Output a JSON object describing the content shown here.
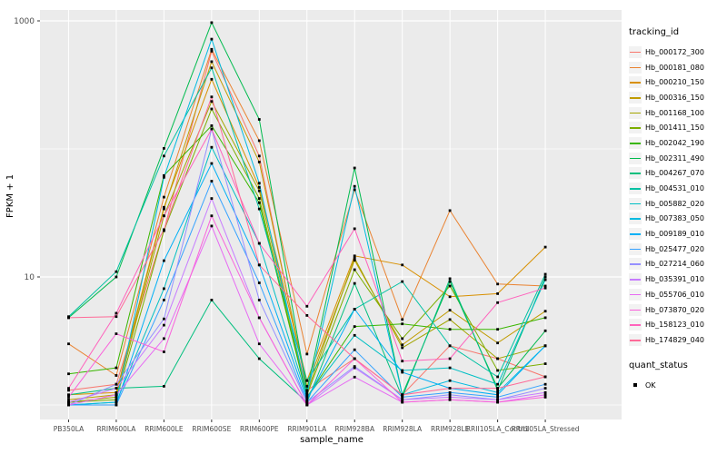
{
  "colors": {
    "panel_bg": "#EBEBEB",
    "grid": "#FFFFFF",
    "tick_label": "#4D4D4D",
    "tick_mark": "#333333",
    "axis_title": "#000000",
    "legend_key_bg": "#F2F2F2",
    "point": "#000000"
  },
  "chart_data": {
    "type": "line",
    "title": "",
    "xlabel": "sample_name",
    "ylabel": "FPKM + 1",
    "y_scale": "log10",
    "ylim": [
      1,
      1200
    ],
    "y_tick_labels": [
      "1000",
      "10"
    ],
    "y_tick_values": [
      1000,
      10
    ],
    "y_minor_grid_values": [
      1,
      100
    ],
    "grid": true,
    "legend_position": "right",
    "legend_title": "tracking_id",
    "point_shape": "square",
    "categories": [
      "PB350LA",
      "RRIM600LA",
      "RRIM600LE",
      "RRIM600SE",
      "RRIM600PE",
      "RRIM901LA",
      "RRIM928BA",
      "RRIM928LA",
      "RRIM928LE",
      "RRII105LA_Control",
      "RRII105LA_Stressed"
    ],
    "series": [
      {
        "name": "Hb_000172_300",
        "color": "#F8766D",
        "values": [
          1.3,
          1.45,
          23,
          580,
          88,
          1.3,
          2.3,
          1.2,
          2.9,
          2.3,
          1.66
        ]
      },
      {
        "name": "Hb_000181_080",
        "color": "#EA8331",
        "values": [
          3.0,
          1.7,
          42,
          600,
          116,
          2.5,
          48,
          4.65,
          33,
          8.8,
          8.5
        ]
      },
      {
        "name": "Hb_000210_150",
        "color": "#D89000",
        "values": [
          1.2,
          1.25,
          35,
          350,
          50,
          1.55,
          14.6,
          12.4,
          7.0,
          7.4,
          17.1
        ]
      },
      {
        "name": "Hb_000316_150",
        "color": "#C09B00",
        "values": [
          1.1,
          1.2,
          34,
          480,
          79,
          1.4,
          13.5,
          2.95,
          5.5,
          3.05,
          5.4
        ]
      },
      {
        "name": "Hb_001168_100",
        "color": "#A3A500",
        "values": [
          1.05,
          1.15,
          30,
          235,
          47,
          1.25,
          14.0,
          2.8,
          4.65,
          2.3,
          2.9
        ]
      },
      {
        "name": "Hb_001411_150",
        "color": "#7CAE00",
        "values": [
          1.05,
          1.1,
          23,
          205,
          41,
          1.2,
          11.4,
          3.3,
          8.5,
          1.86,
          2.1
        ]
      },
      {
        "name": "Hb_002042_190",
        "color": "#39B600",
        "values": [
          1.75,
          1.95,
          62,
          152,
          38,
          1.15,
          4.1,
          4.3,
          3.9,
          3.9,
          4.8
        ]
      },
      {
        "name": "Hb_002311_490",
        "color": "#00BB4E",
        "values": [
          4.8,
          10.0,
          101,
          970,
          170,
          1.3,
          71,
          1.2,
          9.2,
          1.35,
          3.8
        ]
      },
      {
        "name": "Hb_004267_070",
        "color": "#00BF7D",
        "values": [
          1.2,
          1.35,
          1.4,
          6.6,
          2.3,
          1.05,
          8.9,
          1.15,
          9.7,
          1.3,
          10.0
        ]
      },
      {
        "name": "Hb_004531_010",
        "color": "#00C1A3",
        "values": [
          4.9,
          11.0,
          88,
          430,
          34,
          1.55,
          5.6,
          9.2,
          2.9,
          1.66,
          10.5
        ]
      },
      {
        "name": "Hb_005882_020",
        "color": "#00BFC4",
        "values": [
          1.0,
          1.05,
          8.1,
          103,
          18.3,
          1.15,
          3.5,
          1.86,
          1.95,
          1.45,
          9.5
        ]
      },
      {
        "name": "Hb_007383_050",
        "color": "#00BAE0",
        "values": [
          1.0,
          1.05,
          60,
          720,
          54,
          1.2,
          51,
          1.2,
          1.55,
          1.25,
          2.9
        ]
      },
      {
        "name": "Hb_009189_010",
        "color": "#00B0F6",
        "values": [
          1.0,
          1.0,
          13.4,
          77,
          12.4,
          1.1,
          5.6,
          1.8,
          1.35,
          1.2,
          2.9
        ]
      },
      {
        "name": "Hb_025477_020",
        "color": "#35A2FF",
        "values": [
          1.0,
          1.0,
          6.6,
          56,
          9.0,
          1.05,
          2.7,
          1.15,
          1.25,
          1.15,
          1.45
        ]
      },
      {
        "name": "Hb_027214_060",
        "color": "#9590FF",
        "values": [
          1.0,
          1.45,
          4.7,
          143,
          6.6,
          1.05,
          2.0,
          1.1,
          1.2,
          1.1,
          1.35
        ]
      },
      {
        "name": "Hb_035391_010",
        "color": "#C77CFF",
        "values": [
          1.05,
          1.35,
          4.2,
          41,
          4.8,
          1.0,
          1.95,
          1.1,
          1.15,
          1.1,
          1.25
        ]
      },
      {
        "name": "Hb_055706_010",
        "color": "#E76BF3",
        "values": [
          1.0,
          1.2,
          3.3,
          25,
          3.0,
          1.0,
          1.65,
          1.05,
          1.1,
          1.05,
          1.2
        ]
      },
      {
        "name": "Hb_073870_020",
        "color": "#FA62DB",
        "values": [
          1.15,
          3.6,
          2.6,
          30,
          4.8,
          1.0,
          2.3,
          1.05,
          1.1,
          1.05,
          1.15
        ]
      },
      {
        "name": "Hb_158123_010",
        "color": "#FF62BC",
        "values": [
          1.35,
          5.2,
          30,
          143,
          18.3,
          5.9,
          23.8,
          2.2,
          2.3,
          6.3,
          8.2
        ]
      },
      {
        "name": "Hb_174829_040",
        "color": "#FF6A98",
        "values": [
          4.8,
          4.9,
          23.4,
          255,
          12.4,
          5.0,
          2.3,
          1.2,
          1.35,
          1.35,
          1.66
        ]
      }
    ],
    "quant_legend": {
      "title": "quant_status",
      "items": [
        {
          "label": "OK",
          "shape": "square",
          "color": "#000000"
        }
      ]
    }
  }
}
